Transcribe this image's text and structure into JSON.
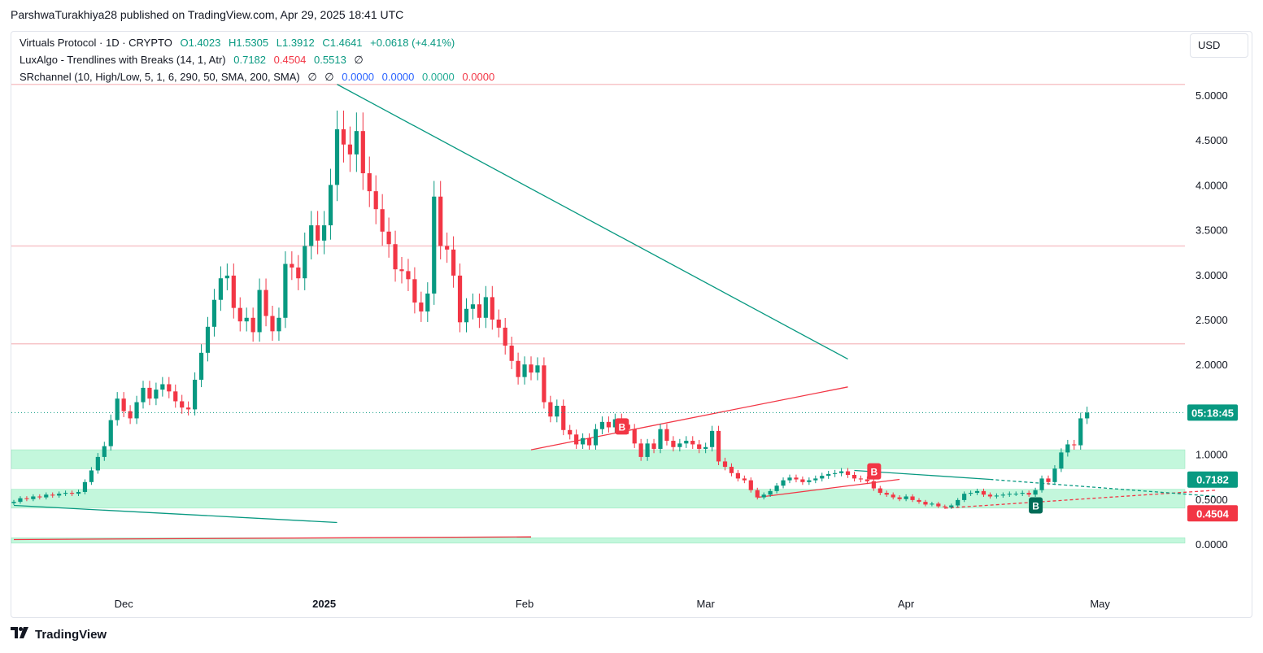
{
  "header": {
    "text": "ParshwaTurakhiya28 published on TradingView.com, Apr 29, 2025 18:41 UTC"
  },
  "legend": {
    "main": {
      "title": "Virtuals Protocol · 1D · CRYPTO",
      "o": "O1.4023",
      "h": "H1.5305",
      "l": "L1.3912",
      "c": "C1.4641",
      "change": "+0.0618 (+4.41%)"
    },
    "luxalgo": {
      "title": "LuxAlgo - Trendlines with Breaks (14, 1, Atr)",
      "v1": "0.7182",
      "v2": "0.4504",
      "v3": "0.5513",
      "v4": "∅"
    },
    "srchannel": {
      "title": "SRchannel (10, High/Low, 5, 1, 6, 290, 50, SMA, 200, SMA)",
      "v1": "∅",
      "v2": "∅",
      "v3": "0.0000",
      "v4": "0.0000",
      "v5": "0.0000",
      "v6": "0.0000"
    }
  },
  "currency": "USD",
  "footer": {
    "brand": "TradingView"
  },
  "colors": {
    "up": "#089981",
    "down": "#f23645",
    "zone": "#b9f6d6",
    "resistance": "#f7c6c9"
  },
  "chart_data": {
    "type": "candlestick",
    "symbol": "Virtuals Protocol",
    "interval": "1D",
    "y_axis": {
      "ticks": [
        "0.0000",
        "0.5000",
        "1.0000",
        "1.5000",
        "2.0000",
        "2.5000",
        "3.0000",
        "3.5000",
        "4.0000",
        "4.5000",
        "5.0000"
      ],
      "range": [
        -0.5,
        5.45
      ]
    },
    "x_axis": {
      "ticks": [
        "Dec",
        "2025",
        "Feb",
        "Mar",
        "Apr",
        "May"
      ]
    },
    "price_labels": [
      {
        "text": "05:18:45",
        "value": 1.4641,
        "color": "#089981"
      },
      {
        "text": "0.7182",
        "value": 0.7182,
        "color": "#089981"
      },
      {
        "text": "0.4504",
        "value": 0.4504,
        "color": "#f23645"
      }
    ],
    "resistance_levels": [
      5.12,
      3.32,
      2.23
    ],
    "support_zones": [
      [
        0.84,
        1.05
      ],
      [
        0.4,
        0.61
      ],
      [
        0.01,
        0.07
      ]
    ],
    "break_labels": [
      {
        "text": "B",
        "date": "2025-02-16",
        "value": 1.31,
        "type": "bearish"
      },
      {
        "text": "B",
        "date": "2025-03-27",
        "value": 0.81,
        "type": "bearish"
      },
      {
        "text": "B",
        "date": "2025-04-21",
        "value": 0.43,
        "type": "bullish"
      }
    ],
    "closes": [
      [
        "2024-11-14",
        0.47
      ],
      [
        "2024-11-15",
        0.51
      ],
      [
        "2024-11-16",
        0.5
      ],
      [
        "2024-11-17",
        0.53
      ],
      [
        "2024-11-18",
        0.52
      ],
      [
        "2024-11-19",
        0.55
      ],
      [
        "2024-11-20",
        0.54
      ],
      [
        "2024-11-21",
        0.56
      ],
      [
        "2024-11-22",
        0.57
      ],
      [
        "2024-11-23",
        0.56
      ],
      [
        "2024-11-24",
        0.58
      ],
      [
        "2024-11-25",
        0.69
      ],
      [
        "2024-11-26",
        0.82
      ],
      [
        "2024-11-27",
        0.97
      ],
      [
        "2024-11-28",
        1.09
      ],
      [
        "2024-11-29",
        1.38
      ],
      [
        "2024-11-30",
        1.62
      ],
      [
        "2024-12-01",
        1.48
      ],
      [
        "2024-12-02",
        1.4
      ],
      [
        "2024-12-03",
        1.58
      ],
      [
        "2024-12-04",
        1.74
      ],
      [
        "2024-12-05",
        1.62
      ],
      [
        "2024-12-06",
        1.72
      ],
      [
        "2024-12-07",
        1.78
      ],
      [
        "2024-12-08",
        1.7
      ],
      [
        "2024-12-09",
        1.59
      ],
      [
        "2024-12-10",
        1.52
      ],
      [
        "2024-12-11",
        1.5
      ],
      [
        "2024-12-12",
        1.83
      ],
      [
        "2024-12-13",
        2.13
      ],
      [
        "2024-12-14",
        2.42
      ],
      [
        "2024-12-15",
        2.72
      ],
      [
        "2024-12-16",
        2.96
      ],
      [
        "2024-12-17",
        2.99
      ],
      [
        "2024-12-18",
        2.63
      ],
      [
        "2024-12-19",
        2.48
      ],
      [
        "2024-12-20",
        2.52
      ],
      [
        "2024-12-21",
        2.36
      ],
      [
        "2024-12-22",
        2.83
      ],
      [
        "2024-12-23",
        2.54
      ],
      [
        "2024-12-24",
        2.37
      ],
      [
        "2024-12-25",
        2.52
      ],
      [
        "2024-12-26",
        3.12
      ],
      [
        "2024-12-27",
        3.08
      ],
      [
        "2024-12-28",
        2.96
      ],
      [
        "2024-12-29",
        3.32
      ],
      [
        "2024-12-30",
        3.55
      ],
      [
        "2024-12-31",
        3.38
      ],
      [
        "2025-01-01",
        3.55
      ],
      [
        "2025-01-02",
        4.0
      ],
      [
        "2025-01-03",
        4.62
      ],
      [
        "2025-01-04",
        4.45
      ],
      [
        "2025-01-05",
        4.34
      ],
      [
        "2025-01-06",
        4.6
      ],
      [
        "2025-01-07",
        4.13
      ],
      [
        "2025-01-08",
        3.93
      ],
      [
        "2025-01-09",
        3.73
      ],
      [
        "2025-01-10",
        3.48
      ],
      [
        "2025-01-11",
        3.34
      ],
      [
        "2025-01-12",
        3.06
      ],
      [
        "2025-01-13",
        3.04
      ],
      [
        "2025-01-14",
        2.95
      ],
      [
        "2025-01-15",
        2.69
      ],
      [
        "2025-01-16",
        2.59
      ],
      [
        "2025-01-17",
        2.79
      ],
      [
        "2025-01-18",
        3.87
      ],
      [
        "2025-01-19",
        3.32
      ],
      [
        "2025-01-20",
        3.28
      ],
      [
        "2025-01-21",
        2.99
      ],
      [
        "2025-01-22",
        2.47
      ],
      [
        "2025-01-23",
        2.62
      ],
      [
        "2025-01-24",
        2.67
      ],
      [
        "2025-01-25",
        2.52
      ],
      [
        "2025-01-26",
        2.75
      ],
      [
        "2025-01-27",
        2.5
      ],
      [
        "2025-01-28",
        2.41
      ],
      [
        "2025-01-29",
        2.21
      ],
      [
        "2025-01-30",
        2.04
      ],
      [
        "2025-01-31",
        1.86
      ],
      [
        "2025-02-01",
        2.0
      ],
      [
        "2025-02-02",
        1.91
      ],
      [
        "2025-02-03",
        1.99
      ],
      [
        "2025-02-04",
        1.58
      ],
      [
        "2025-02-05",
        1.42
      ],
      [
        "2025-02-06",
        1.54
      ],
      [
        "2025-02-07",
        1.27
      ],
      [
        "2025-02-08",
        1.22
      ],
      [
        "2025-02-09",
        1.11
      ],
      [
        "2025-02-10",
        1.18
      ],
      [
        "2025-02-11",
        1.1
      ],
      [
        "2025-02-12",
        1.28
      ],
      [
        "2025-02-13",
        1.36
      ],
      [
        "2025-02-14",
        1.3
      ],
      [
        "2025-02-15",
        1.39
      ],
      [
        "2025-02-16",
        1.33
      ],
      [
        "2025-02-17",
        1.28
      ],
      [
        "2025-02-18",
        1.12
      ],
      [
        "2025-02-19",
        0.97
      ],
      [
        "2025-02-20",
        1.12
      ],
      [
        "2025-02-21",
        1.06
      ],
      [
        "2025-02-22",
        1.28
      ],
      [
        "2025-02-23",
        1.15
      ],
      [
        "2025-02-24",
        1.08
      ],
      [
        "2025-02-25",
        1.12
      ],
      [
        "2025-02-26",
        1.15
      ],
      [
        "2025-02-27",
        1.11
      ],
      [
        "2025-02-28",
        1.06
      ],
      [
        "2025-03-01",
        1.08
      ],
      [
        "2025-03-02",
        1.26
      ],
      [
        "2025-03-03",
        0.92
      ],
      [
        "2025-03-04",
        0.86
      ],
      [
        "2025-03-05",
        0.79
      ],
      [
        "2025-03-06",
        0.73
      ],
      [
        "2025-03-07",
        0.71
      ],
      [
        "2025-03-08",
        0.6
      ],
      [
        "2025-03-09",
        0.52
      ],
      [
        "2025-03-10",
        0.55
      ],
      [
        "2025-03-11",
        0.59
      ],
      [
        "2025-03-12",
        0.65
      ],
      [
        "2025-03-13",
        0.71
      ],
      [
        "2025-03-14",
        0.74
      ],
      [
        "2025-03-15",
        0.72
      ],
      [
        "2025-03-16",
        0.69
      ],
      [
        "2025-03-17",
        0.71
      ],
      [
        "2025-03-18",
        0.73
      ],
      [
        "2025-03-19",
        0.76
      ],
      [
        "2025-03-20",
        0.78
      ],
      [
        "2025-03-21",
        0.79
      ],
      [
        "2025-03-22",
        0.81
      ],
      [
        "2025-03-23",
        0.77
      ],
      [
        "2025-03-24",
        0.73
      ],
      [
        "2025-03-25",
        0.72
      ],
      [
        "2025-03-26",
        0.7
      ],
      [
        "2025-03-27",
        0.62
      ],
      [
        "2025-03-28",
        0.57
      ],
      [
        "2025-03-29",
        0.55
      ],
      [
        "2025-03-30",
        0.52
      ],
      [
        "2025-03-31",
        0.5
      ],
      [
        "2025-04-01",
        0.53
      ],
      [
        "2025-04-02",
        0.49
      ],
      [
        "2025-04-03",
        0.47
      ],
      [
        "2025-04-04",
        0.44
      ],
      [
        "2025-04-05",
        0.45
      ],
      [
        "2025-04-06",
        0.42
      ],
      [
        "2025-04-07",
        0.41
      ],
      [
        "2025-04-08",
        0.43
      ],
      [
        "2025-04-09",
        0.49
      ],
      [
        "2025-04-10",
        0.56
      ],
      [
        "2025-04-11",
        0.57
      ],
      [
        "2025-04-12",
        0.59
      ],
      [
        "2025-04-13",
        0.55
      ],
      [
        "2025-04-14",
        0.53
      ],
      [
        "2025-04-15",
        0.54
      ],
      [
        "2025-04-16",
        0.55
      ],
      [
        "2025-04-17",
        0.56
      ],
      [
        "2025-04-18",
        0.56
      ],
      [
        "2025-04-19",
        0.57
      ],
      [
        "2025-04-20",
        0.55
      ],
      [
        "2025-04-21",
        0.6
      ],
      [
        "2025-04-22",
        0.73
      ],
      [
        "2025-04-23",
        0.69
      ],
      [
        "2025-04-24",
        0.84
      ],
      [
        "2025-04-25",
        1.02
      ],
      [
        "2025-04-26",
        1.11
      ],
      [
        "2025-04-27",
        1.1
      ],
      [
        "2025-04-28",
        1.4
      ],
      [
        "2025-04-29",
        1.4641
      ]
    ]
  }
}
